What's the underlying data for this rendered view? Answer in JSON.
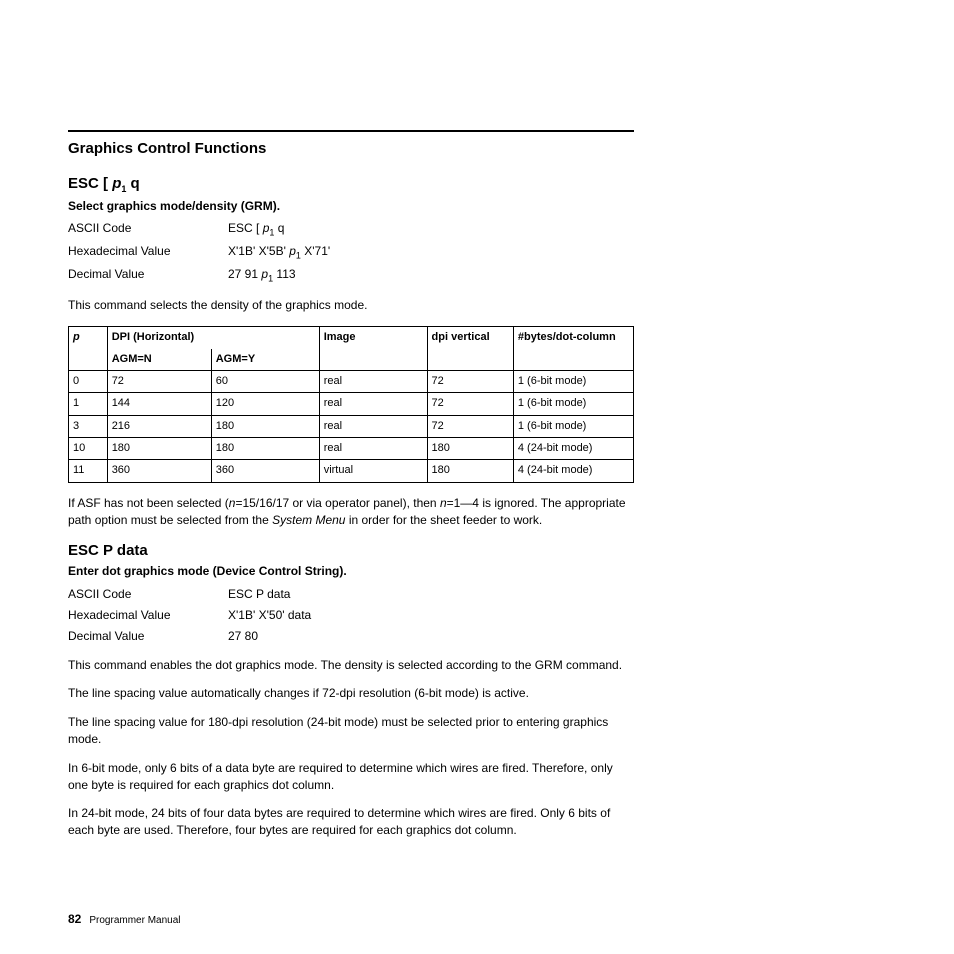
{
  "section_title": "Graphics Control Functions",
  "cmd1": {
    "title_prefix": "ESC [ ",
    "title_var": "p",
    "title_sub": "1",
    "title_suffix": " q",
    "subtitle": "Select graphics mode/density (GRM).",
    "ascii_label": "ASCII Code",
    "ascii_prefix": "ESC [ ",
    "ascii_var": "p",
    "ascii_sub": "1",
    "ascii_suffix": " q",
    "hex_label": "Hexadecimal Value",
    "hex_prefix": "X'1B' X'5B' ",
    "hex_var": "p",
    "hex_sub": "1",
    "hex_suffix": " X'71'",
    "dec_label": "Decimal Value",
    "dec_prefix": "27 91 ",
    "dec_var": "p",
    "dec_sub": "1",
    "dec_suffix": " 113",
    "desc": "This command selects the density of the graphics mode."
  },
  "table": {
    "headers": {
      "p": "p",
      "dpi_h": "DPI (Horizontal)",
      "agm_n": "AGM=N",
      "agm_y": "AGM=Y",
      "image": "Image",
      "dpi_v": "dpi vertical",
      "bytes": "#bytes/dot-column"
    },
    "rows": [
      {
        "p": "0",
        "n": "72",
        "y": "60",
        "img": "real",
        "v": "72",
        "b": "1 (6-bit mode)"
      },
      {
        "p": "1",
        "n": "144",
        "y": "120",
        "img": "real",
        "v": "72",
        "b": "1 (6-bit mode)"
      },
      {
        "p": "3",
        "n": "216",
        "y": "180",
        "img": "real",
        "v": "72",
        "b": "1 (6-bit mode)"
      },
      {
        "p": "10",
        "n": "180",
        "y": "180",
        "img": "real",
        "v": "180",
        "b": "4 (24-bit mode)"
      },
      {
        "p": "11",
        "n": "360",
        "y": "360",
        "img": "virtual",
        "v": "180",
        "b": "4 (24-bit mode)"
      }
    ]
  },
  "asf_prefix": "If ASF has not been selected (",
  "asf_n1": "n",
  "asf_mid1": "=15/16/17 or via operator panel), then ",
  "asf_n2": "n",
  "asf_mid2": "=1—4 is ignored. The appropriate path option must be selected from the ",
  "asf_sys": "System Menu",
  "asf_suffix": " in order for the sheet feeder to work.",
  "cmd2": {
    "title": "ESC P data",
    "subtitle": "Enter dot graphics mode (Device Control String).",
    "ascii_label": "ASCII Code",
    "ascii_value": "ESC P data",
    "hex_label": "Hexadecimal Value",
    "hex_value": "X'1B' X'50' data",
    "dec_label": "Decimal Value",
    "dec_value": "27 80"
  },
  "p1": "This command enables the dot graphics mode. The density is selected according to the GRM command.",
  "p2": "The line spacing value automatically changes if 72-dpi resolution (6-bit mode) is active.",
  "p3": "The line spacing value for 180-dpi resolution (24-bit mode) must be selected prior to entering graphics mode.",
  "p4": "In 6-bit mode, only 6 bits of a data byte are required to determine which wires are fired. Therefore, only one byte is required for each graphics dot column.",
  "p5": "In 24-bit mode, 24 bits of four data bytes are required to determine which wires are fired. Only 6 bits of each byte are used. Therefore, four bytes are required for each graphics dot column.",
  "footer": {
    "page": "82",
    "title": "Programmer Manual"
  }
}
